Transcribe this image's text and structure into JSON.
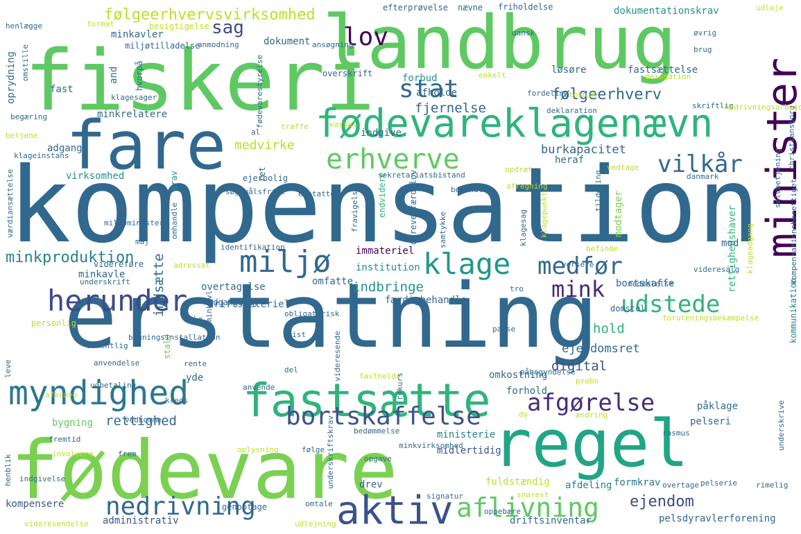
{
  "words": [
    {
      "text": "kompensation",
      "color": "#31688e"
    },
    {
      "text": "erstatning",
      "color": "#31688e"
    },
    {
      "text": "fiskeri",
      "color": "#5ec962"
    },
    {
      "text": "landbrug",
      "color": "#5ec962"
    },
    {
      "text": "fare",
      "color": "#31688e"
    },
    {
      "text": "fødevare",
      "color": "#7ad151"
    },
    {
      "text": "regel",
      "color": "#21a585"
    },
    {
      "text": "fødevareklagenævn",
      "color": "#2fb47c"
    },
    {
      "text": "minister",
      "color": "#440154"
    },
    {
      "text": "fastsætte",
      "color": "#2fb47c"
    },
    {
      "text": "aktiv",
      "color": "#3b528b"
    },
    {
      "text": "miljø",
      "color": "#31688e"
    },
    {
      "text": "klage",
      "color": "#1f988b"
    },
    {
      "text": "myndighed",
      "color": "#2a788e"
    },
    {
      "text": "herunder",
      "color": "#3e4a89"
    },
    {
      "text": "bortskaffelse",
      "color": "#3b528b"
    },
    {
      "text": "nedrivning",
      "color": "#31688e"
    },
    {
      "text": "aflivning",
      "color": "#5ec962"
    },
    {
      "text": "udstede",
      "color": "#2fb47c"
    },
    {
      "text": "medfør",
      "color": "#31688e"
    },
    {
      "text": "afgørelse",
      "color": "#472d7b"
    },
    {
      "text": "erhverve",
      "color": "#5ec962"
    },
    {
      "text": "vilkår",
      "color": "#31688e"
    },
    {
      "text": "stat",
      "color": "#31688e"
    },
    {
      "text": "lov",
      "color": "#440154"
    },
    {
      "text": "mink",
      "color": "#482878"
    },
    {
      "text": "sag",
      "color": "#3e4a89"
    },
    {
      "text": "følgeerhvervsvirksomhed",
      "color": "#bddf26"
    },
    {
      "text": "følgeerhverv",
      "color": "#31688e"
    },
    {
      "text": "minkproduktion",
      "color": "#26828e"
    },
    {
      "text": "ejendom",
      "color": "#3e4a89"
    },
    {
      "text": "rettighed",
      "color": "#31688e"
    },
    {
      "text": "digital",
      "color": "#3b528b"
    },
    {
      "text": "hold",
      "color": "#2fb47c"
    },
    {
      "text": "ejendomsret",
      "color": "#31688e"
    },
    {
      "text": "indsætte",
      "color": "#31688e"
    },
    {
      "text": "indbringe",
      "color": "#21918c"
    },
    {
      "text": "fjernelse",
      "color": "#31688e"
    },
    {
      "text": "burkapacitet",
      "color": "#31688e"
    },
    {
      "text": "medvirke",
      "color": "#b5de2b"
    },
    {
      "text": "dokumentationskrav",
      "color": "#21918c"
    },
    {
      "text": "fuldstændig",
      "color": "#bddf26"
    },
    {
      "text": "formkrav",
      "color": "#2a788e"
    },
    {
      "text": "pelsdyravlerforening",
      "color": "#31688e"
    },
    {
      "text": "kompensere",
      "color": "#3b528b"
    },
    {
      "text": "administrativ",
      "color": "#3b528b"
    },
    {
      "text": "bygning",
      "color": "#5ec962"
    },
    {
      "text": "immateriel",
      "color": "#440154"
    },
    {
      "text": "institution",
      "color": "#21918c"
    },
    {
      "text": "minkavler",
      "color": "#31688e"
    },
    {
      "text": "minkavle",
      "color": "#31688e"
    },
    {
      "text": "minkrelatere",
      "color": "#31688e"
    },
    {
      "text": "dokument",
      "color": "#31688e"
    },
    {
      "text": "virksomhed",
      "color": "#21918c"
    },
    {
      "text": "adgang",
      "color": "#31688e"
    },
    {
      "text": "overtagelse",
      "color": "#31688e"
    },
    {
      "text": "omfatte",
      "color": "#31688e"
    },
    {
      "text": "bortskaffe",
      "color": "#31688e"
    },
    {
      "text": "modtager",
      "color": "#7ad151"
    },
    {
      "text": "rettighedshaver",
      "color": "#2fb47c"
    },
    {
      "text": "kommunikation",
      "color": "#26828e"
    },
    {
      "text": "ministerie",
      "color": "#26828e"
    },
    {
      "text": "midlertidig",
      "color": "#3b528b"
    },
    {
      "text": "afdeling",
      "color": "#26828e"
    },
    {
      "text": "drev",
      "color": "#31688e"
    },
    {
      "text": "driftsinventar",
      "color": "#31688e"
    },
    {
      "text": "omkostning",
      "color": "#31688e"
    },
    {
      "text": "forhold",
      "color": "#31688e"
    },
    {
      "text": "påklage",
      "color": "#31688e"
    },
    {
      "text": "pelseri",
      "color": "#31688e"
    },
    {
      "text": "oprydning",
      "color": "#31688e"
    },
    {
      "text": "afholde",
      "color": "#31688e"
    },
    {
      "text": "forbud",
      "color": "#21918c"
    },
    {
      "text": "løsøre",
      "color": "#31688e"
    },
    {
      "text": "fastsættelse",
      "color": "#31688e"
    },
    {
      "text": "fast",
      "color": "#31688e"
    },
    {
      "text": "indgive",
      "color": "#31688e"
    },
    {
      "text": "krav",
      "color": "#21918c"
    },
    {
      "text": "ret",
      "color": "#31688e"
    },
    {
      "text": "heraf",
      "color": "#31688e"
    },
    {
      "text": "mod",
      "color": "#31688e"
    },
    {
      "text": "yde",
      "color": "#31688e"
    },
    {
      "text": "stald",
      "color": "#5ec962"
    },
    {
      "text": "vis",
      "color": "#31688e"
    },
    {
      "text": "endvidere",
      "color": "#2fb47c"
    },
    {
      "text": "dyrevelfærdslov",
      "color": "#31688e"
    },
    {
      "text": "færdigbehandle",
      "color": "#31688e"
    },
    {
      "text": "driftsmateriel",
      "color": "#31688e"
    },
    {
      "text": "adgangsvej",
      "color": "#31688e"
    },
    {
      "text": "and",
      "color": "#31688e"
    },
    {
      "text": "hvorpå",
      "color": "#31688e"
    },
    {
      "text": "efterprøvelse",
      "color": "#31688e"
    },
    {
      "text": "friholdelse",
      "color": "#31688e"
    },
    {
      "text": "nævne",
      "color": "#31688e"
    },
    {
      "text": "udleje",
      "color": "#bddf26"
    },
    {
      "text": "henlægge",
      "color": "#31688e"
    },
    {
      "text": "format",
      "color": "#bddf26"
    },
    {
      "text": "besigtigelse",
      "color": "#bddf26"
    },
    {
      "text": "dansk",
      "color": "#31688e"
    },
    {
      "text": "øvrig",
      "color": "#31688e"
    },
    {
      "text": "miljøtilladelse",
      "color": "#31688e"
    },
    {
      "text": "anmodning",
      "color": "#31688e"
    },
    {
      "text": "ansøgning",
      "color": "#31688e"
    },
    {
      "text": "omstille",
      "color": "#31688e"
    },
    {
      "text": "brug",
      "color": "#31688e"
    },
    {
      "text": "overskrift",
      "color": "#31688e"
    },
    {
      "text": "enkelt",
      "color": "#bddf26"
    },
    {
      "text": "delegation",
      "color": "#bddf26"
    },
    {
      "text": "klagesager",
      "color": "#31688e"
    },
    {
      "text": "fødevarestyrelse",
      "color": "#31688e"
    },
    {
      "text": "fordeling",
      "color": "#31688e"
    },
    {
      "text": "teknik",
      "color": "#bddf26"
    },
    {
      "text": "christiansborg",
      "color": "#31688e"
    },
    {
      "text": "varsel",
      "color": "#bddf26"
    },
    {
      "text": "deklaration",
      "color": "#31688e"
    },
    {
      "text": "skriftlig",
      "color": "#31688e"
    },
    {
      "text": "nedrivningsarbejde",
      "color": "#bddf26"
    },
    {
      "text": "begæring",
      "color": "#31688e"
    },
    {
      "text": "betjene",
      "color": "#bddf26"
    },
    {
      "text": "al",
      "color": "#31688e"
    },
    {
      "text": "træffe",
      "color": "#bddf26"
    },
    {
      "text": "kompensationsberettiget",
      "color": "#31688e"
    },
    {
      "text": "sekretariatsbistand",
      "color": "#31688e"
    },
    {
      "text": "klageinstans",
      "color": "#31688e"
    },
    {
      "text": "ejerbolig",
      "color": "#31688e"
    },
    {
      "text": "opdræt",
      "color": "#bddf26"
    },
    {
      "text": "vedtage",
      "color": "#bddf26"
    },
    {
      "text": "søgsmålsfrist",
      "color": "#31688e"
    },
    {
      "text": "erstatte",
      "color": "#31688e"
    },
    {
      "text": "afregning",
      "color": "#bddf26"
    },
    {
      "text": "behandle",
      "color": "#31688e"
    },
    {
      "text": "danmark",
      "color": "#31688e"
    },
    {
      "text": "værdiansættelse",
      "color": "#31688e"
    },
    {
      "text": "miljøminister",
      "color": "#31688e"
    },
    {
      "text": "maj",
      "color": "#31688e"
    },
    {
      "text": "omhandle",
      "color": "#31688e"
    },
    {
      "text": "fravigelse",
      "color": "#31688e"
    },
    {
      "text": "samtykke",
      "color": "#31688e"
    },
    {
      "text": "klagesag",
      "color": "#31688e"
    },
    {
      "text": "klagepunkt",
      "color": "#bddf26"
    },
    {
      "text": "tildeling",
      "color": "#31688e"
    },
    {
      "text": "klageadgang",
      "color": "#bddf26"
    },
    {
      "text": "selvbetjening",
      "color": "#31688e"
    },
    {
      "text": "befinde",
      "color": "#bddf26"
    },
    {
      "text": "identifikation",
      "color": "#31688e"
    },
    {
      "text": "versere",
      "color": "#31688e"
    },
    {
      "text": "videreføre",
      "color": "#31688e"
    },
    {
      "text": "underskrift",
      "color": "#31688e"
    },
    {
      "text": "adressat",
      "color": "#bddf26"
    },
    {
      "text": "videresalg",
      "color": "#31688e"
    },
    {
      "text": "tro",
      "color": "#31688e"
    },
    {
      "text": "meddelelse",
      "color": "#31688e"
    },
    {
      "text": "domstol",
      "color": "#31688e"
    },
    {
      "text": "forureningsbekæmpelse",
      "color": "#bddf26"
    },
    {
      "text": "personlig",
      "color": "#bddf26"
    },
    {
      "text": "minkavl",
      "color": "#31688e"
    },
    {
      "text": "obligatorisk",
      "color": "#31688e"
    },
    {
      "text": "frist",
      "color": "#31688e"
    },
    {
      "text": "passe",
      "color": "#31688e"
    },
    {
      "text": "leve",
      "color": "#31688e"
    },
    {
      "text": "bygningsinstallation",
      "color": "#31688e"
    },
    {
      "text": "offentlig",
      "color": "#31688e"
    },
    {
      "text": "anvendelse",
      "color": "#31688e"
    },
    {
      "text": "rente",
      "color": "#31688e"
    },
    {
      "text": "del",
      "color": "#31688e"
    },
    {
      "text": "fastholde",
      "color": "#bddf26"
    },
    {
      "text": "videresende",
      "color": "#31688e"
    },
    {
      "text": "påbegyndelse",
      "color": "#31688e"
    },
    {
      "text": "prehn",
      "color": "#bddf26"
    },
    {
      "text": "udbetaling",
      "color": "#31688e"
    },
    {
      "text": "afkræve",
      "color": "#bddf26"
    },
    {
      "text": "kreds",
      "color": "#31688e"
    },
    {
      "text": "anvende",
      "color": "#31688e"
    },
    {
      "text": "rekurs",
      "color": "#31688e"
    },
    {
      "text": "dy",
      "color": "#bddf26"
    },
    {
      "text": "ændring",
      "color": "#bddf26"
    },
    {
      "text": "rasmus",
      "color": "#31688e"
    },
    {
      "text": "vedkomme",
      "color": "#31688e"
    },
    {
      "text": "fremtid",
      "color": "#31688e"
    },
    {
      "text": "involvere",
      "color": "#bddf26"
    },
    {
      "text": "frem",
      "color": "#31688e"
    },
    {
      "text": "oplysning",
      "color": "#bddf26"
    },
    {
      "text": "følge",
      "color": "#31688e"
    },
    {
      "text": "bedømmelse",
      "color": "#31688e"
    },
    {
      "text": "minkvirksomhed",
      "color": "#31688e"
    },
    {
      "text": "underskriftskrav",
      "color": "#31688e"
    },
    {
      "text": "underskrive",
      "color": "#31688e"
    },
    {
      "text": "opgave",
      "color": "#31688e"
    },
    {
      "text": "henblik",
      "color": "#31688e"
    },
    {
      "text": "indgivelse",
      "color": "#31688e"
    },
    {
      "text": "signatur",
      "color": "#31688e"
    },
    {
      "text": "snarest",
      "color": "#bddf26"
    },
    {
      "text": "omtale",
      "color": "#31688e"
    },
    {
      "text": "overtage",
      "color": "#31688e"
    },
    {
      "text": "pelserie",
      "color": "#31688e"
    },
    {
      "text": "rimelig",
      "color": "#31688e"
    },
    {
      "text": "genoptage",
      "color": "#31688e"
    },
    {
      "text": "oppebære",
      "color": "#31688e"
    },
    {
      "text": "videresendelse",
      "color": "#bddf26"
    },
    {
      "text": "udlejning",
      "color": "#bddf26"
    }
  ]
}
